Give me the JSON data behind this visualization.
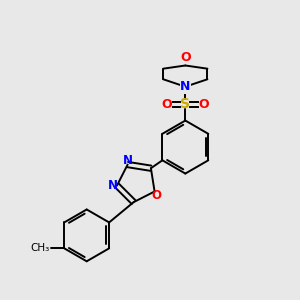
{
  "background_color": "#e8e8e8",
  "bond_color": "#000000",
  "atom_colors": {
    "O": "#ff0000",
    "N": "#0000ff",
    "S": "#ccaa00",
    "C": "#000000"
  },
  "figsize": [
    3.0,
    3.0
  ],
  "dpi": 100
}
